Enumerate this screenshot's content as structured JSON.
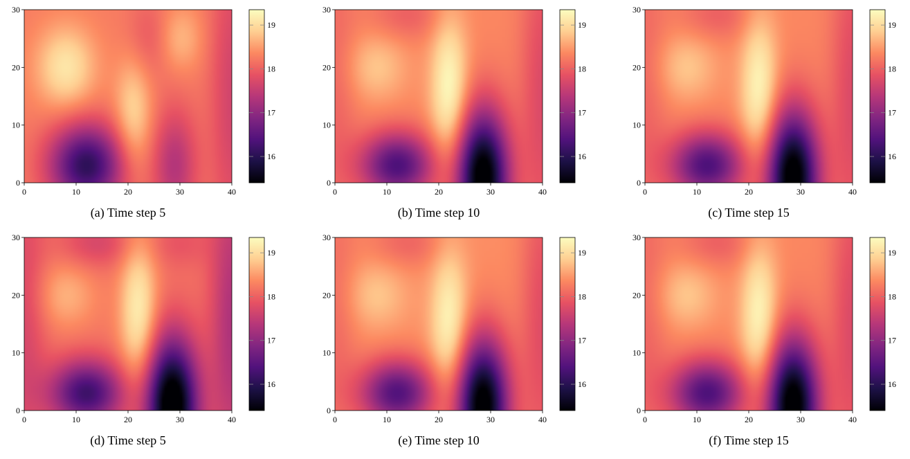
{
  "figure": {
    "colormap": "magma",
    "colormap_stops": [
      "#000004",
      "#1d1147",
      "#51127c",
      "#822681",
      "#b73779",
      "#e75263",
      "#fc8961",
      "#fecf92",
      "#fcfdbf"
    ]
  },
  "chart_data": [
    {
      "type": "heatmap",
      "caption": "(a) Time step 5",
      "xlim": [
        0,
        40
      ],
      "ylim": [
        0,
        30
      ],
      "xticks": [
        "0",
        "10",
        "20",
        "30",
        "40"
      ],
      "yticks": [
        "0",
        "10",
        "20",
        "30"
      ],
      "colorbar": {
        "range": [
          15.4,
          19.35
        ],
        "ticks": [
          "16",
          "17",
          "18",
          "19"
        ]
      },
      "base": 18.25,
      "features": [
        {
          "x": 8,
          "y": 20,
          "sx": 4,
          "sy": 5,
          "amp": 0.85
        },
        {
          "x": 21,
          "y": 12,
          "sx": 2.5,
          "sy": 7,
          "amp": 0.7
        },
        {
          "x": 12,
          "y": 3,
          "sx": 5,
          "sy": 5,
          "amp": -2.2
        },
        {
          "x": 29,
          "y": 3,
          "sx": 3,
          "sy": 7,
          "amp": -0.9
        },
        {
          "x": 24,
          "y": 25,
          "sx": 3,
          "sy": 5,
          "amp": -0.35
        },
        {
          "x": 30,
          "y": 25,
          "sx": 3,
          "sy": 4,
          "amp": 0.45
        },
        {
          "x": 40,
          "y": 15,
          "sx": 3,
          "sy": 20,
          "amp": -0.6
        }
      ]
    },
    {
      "type": "heatmap",
      "caption": "(b) Time step 10",
      "xlim": [
        0,
        40
      ],
      "ylim": [
        0,
        30
      ],
      "xticks": [
        "0",
        "10",
        "20",
        "30",
        "40"
      ],
      "yticks": [
        "0",
        "10",
        "20",
        "30"
      ],
      "colorbar": {
        "range": [
          15.4,
          19.35
        ],
        "ticks": [
          "16",
          "17",
          "18",
          "19"
        ]
      },
      "base": 18.35,
      "features": [
        {
          "x": 8,
          "y": 20,
          "sx": 4,
          "sy": 4,
          "amp": 0.45
        },
        {
          "x": 22,
          "y": 16,
          "sx": 2.5,
          "sy": 9,
          "amp": 1.0
        },
        {
          "x": 12,
          "y": 3,
          "sx": 5,
          "sy": 4,
          "amp": -2.0
        },
        {
          "x": 28.5,
          "y": 1,
          "sx": 3.5,
          "sy": 8,
          "amp": -3.2
        },
        {
          "x": 14,
          "y": 29,
          "sx": 5,
          "sy": 3,
          "amp": -0.35
        },
        {
          "x": 40,
          "y": 15,
          "sx": 3,
          "sy": 20,
          "amp": -0.6
        },
        {
          "x": 0,
          "y": 15,
          "sx": 3,
          "sy": 20,
          "amp": -0.3
        }
      ]
    },
    {
      "type": "heatmap",
      "caption": "(c) Time step 15",
      "xlim": [
        0,
        40
      ],
      "ylim": [
        0,
        30
      ],
      "xticks": [
        "0",
        "10",
        "20",
        "30",
        "40"
      ],
      "yticks": [
        "0",
        "10",
        "20",
        "30"
      ],
      "colorbar": {
        "range": [
          15.4,
          19.35
        ],
        "ticks": [
          "16",
          "17",
          "18",
          "19"
        ]
      },
      "base": 18.35,
      "features": [
        {
          "x": 8,
          "y": 20,
          "sx": 4,
          "sy": 4,
          "amp": 0.45
        },
        {
          "x": 22,
          "y": 16,
          "sx": 2.5,
          "sy": 9,
          "amp": 0.95
        },
        {
          "x": 12,
          "y": 3,
          "sx": 5,
          "sy": 4,
          "amp": -2.0
        },
        {
          "x": 28.5,
          "y": 1,
          "sx": 3.5,
          "sy": 8,
          "amp": -3.2
        },
        {
          "x": 14,
          "y": 29,
          "sx": 5,
          "sy": 3,
          "amp": -0.35
        },
        {
          "x": 40,
          "y": 15,
          "sx": 3,
          "sy": 20,
          "amp": -0.6
        },
        {
          "x": 0,
          "y": 15,
          "sx": 3,
          "sy": 20,
          "amp": -0.3
        }
      ]
    },
    {
      "type": "heatmap",
      "caption": "(d) Time step 5",
      "xlim": [
        0,
        40
      ],
      "ylim": [
        0,
        30
      ],
      "xticks": [
        "0",
        "10",
        "20",
        "30",
        "40"
      ],
      "yticks": [
        "0",
        "10",
        "20",
        "30"
      ],
      "colorbar": {
        "range": [
          15.4,
          19.35
        ],
        "ticks": [
          "16",
          "17",
          "18",
          "19"
        ]
      },
      "base": 18.2,
      "features": [
        {
          "x": 8,
          "y": 20,
          "sx": 4,
          "sy": 4,
          "amp": 0.45
        },
        {
          "x": 22,
          "y": 17,
          "sx": 2.5,
          "sy": 9,
          "amp": 1.0
        },
        {
          "x": 12,
          "y": 3,
          "sx": 5,
          "sy": 4,
          "amp": -2.0
        },
        {
          "x": 28.5,
          "y": 1,
          "sx": 3.5,
          "sy": 8,
          "amp": -3.2
        },
        {
          "x": 14,
          "y": 29,
          "sx": 5,
          "sy": 3,
          "amp": -0.5
        },
        {
          "x": 40,
          "y": 15,
          "sx": 3,
          "sy": 20,
          "amp": -0.9
        },
        {
          "x": 0,
          "y": 15,
          "sx": 3,
          "sy": 20,
          "amp": -0.5
        },
        {
          "x": 30,
          "y": 29,
          "sx": 4,
          "sy": 3,
          "amp": -0.3
        }
      ]
    },
    {
      "type": "heatmap",
      "caption": "(e) Time step 10",
      "xlim": [
        0,
        40
      ],
      "ylim": [
        0,
        30
      ],
      "xticks": [
        "0",
        "10",
        "20",
        "30",
        "40"
      ],
      "yticks": [
        "0",
        "10",
        "20",
        "30"
      ],
      "colorbar": {
        "range": [
          15.4,
          19.35
        ],
        "ticks": [
          "16",
          "17",
          "18",
          "19"
        ]
      },
      "base": 18.4,
      "features": [
        {
          "x": 8,
          "y": 20,
          "sx": 4,
          "sy": 4,
          "amp": 0.4
        },
        {
          "x": 22,
          "y": 15,
          "sx": 2.5,
          "sy": 9,
          "amp": 0.9
        },
        {
          "x": 12,
          "y": 3,
          "sx": 5,
          "sy": 4,
          "amp": -2.0
        },
        {
          "x": 28.5,
          "y": 1,
          "sx": 3.5,
          "sy": 8,
          "amp": -3.2
        },
        {
          "x": 14,
          "y": 29,
          "sx": 5,
          "sy": 3,
          "amp": -0.35
        },
        {
          "x": 40,
          "y": 15,
          "sx": 3,
          "sy": 20,
          "amp": -0.6
        },
        {
          "x": 0,
          "y": 15,
          "sx": 3,
          "sy": 20,
          "amp": -0.3
        }
      ]
    },
    {
      "type": "heatmap",
      "caption": "(f) Time step 15",
      "xlim": [
        0,
        40
      ],
      "ylim": [
        0,
        30
      ],
      "xticks": [
        "0",
        "10",
        "20",
        "30",
        "40"
      ],
      "yticks": [
        "0",
        "10",
        "20",
        "30"
      ],
      "colorbar": {
        "range": [
          15.4,
          19.35
        ],
        "ticks": [
          "16",
          "17",
          "18",
          "19"
        ]
      },
      "base": 18.35,
      "features": [
        {
          "x": 8,
          "y": 20,
          "sx": 4,
          "sy": 4,
          "amp": 0.45
        },
        {
          "x": 22,
          "y": 16,
          "sx": 2.5,
          "sy": 9,
          "amp": 0.95
        },
        {
          "x": 12,
          "y": 3,
          "sx": 5,
          "sy": 4,
          "amp": -2.0
        },
        {
          "x": 28.5,
          "y": 1,
          "sx": 3.5,
          "sy": 8,
          "amp": -3.2
        },
        {
          "x": 14,
          "y": 29,
          "sx": 5,
          "sy": 3,
          "amp": -0.35
        },
        {
          "x": 40,
          "y": 15,
          "sx": 3,
          "sy": 20,
          "amp": -0.6
        },
        {
          "x": 0,
          "y": 15,
          "sx": 3,
          "sy": 20,
          "amp": -0.3
        }
      ]
    }
  ]
}
